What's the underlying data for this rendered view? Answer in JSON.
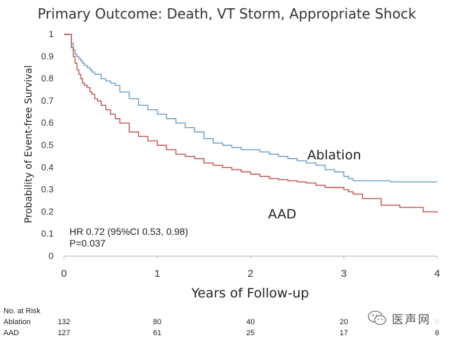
{
  "chart_data": {
    "type": "line",
    "title": "Primary Outcome: Death, VT Storm, Appropriate Shock",
    "xlabel": "Years of Follow-up",
    "ylabel": "Probability of Event-free Survival",
    "xlim": [
      0,
      4
    ],
    "ylim": [
      0,
      1
    ],
    "x_ticks": [
      "0",
      "1",
      "2",
      "3",
      "4"
    ],
    "y_ticks": [
      "0",
      "0.1",
      "0.2",
      "0.3",
      "0.4",
      "0.5",
      "0.6",
      "0.7",
      "0.8",
      "0.9",
      "1"
    ],
    "series": [
      {
        "name": "Ablation",
        "color": "#6a9bc3",
        "x": [
          0,
          0.07,
          0.08,
          0.1,
          0.12,
          0.14,
          0.16,
          0.18,
          0.2,
          0.22,
          0.25,
          0.28,
          0.3,
          0.33,
          0.36,
          0.4,
          0.45,
          0.5,
          0.55,
          0.6,
          0.7,
          0.8,
          0.9,
          1.0,
          1.1,
          1.2,
          1.3,
          1.4,
          1.5,
          1.6,
          1.7,
          1.8,
          1.9,
          2.0,
          2.1,
          2.2,
          2.3,
          2.4,
          2.5,
          2.6,
          2.7,
          2.8,
          2.9,
          3.0,
          3.05,
          3.1,
          3.3,
          3.5,
          4.0
        ],
        "y": [
          1,
          1,
          0.96,
          0.93,
          0.91,
          0.9,
          0.89,
          0.88,
          0.87,
          0.86,
          0.85,
          0.84,
          0.83,
          0.82,
          0.82,
          0.8,
          0.79,
          0.78,
          0.77,
          0.74,
          0.71,
          0.68,
          0.66,
          0.64,
          0.62,
          0.6,
          0.58,
          0.56,
          0.53,
          0.51,
          0.5,
          0.49,
          0.48,
          0.48,
          0.47,
          0.46,
          0.45,
          0.44,
          0.43,
          0.42,
          0.41,
          0.39,
          0.38,
          0.36,
          0.35,
          0.34,
          0.34,
          0.335,
          0.335
        ]
      },
      {
        "name": "AAD",
        "color": "#c0504d",
        "x": [
          0,
          0.07,
          0.08,
          0.1,
          0.12,
          0.14,
          0.16,
          0.18,
          0.2,
          0.22,
          0.25,
          0.28,
          0.3,
          0.33,
          0.36,
          0.4,
          0.45,
          0.5,
          0.55,
          0.6,
          0.7,
          0.8,
          0.9,
          1.0,
          1.1,
          1.2,
          1.3,
          1.4,
          1.5,
          1.6,
          1.7,
          1.8,
          1.9,
          2.0,
          2.1,
          2.2,
          2.3,
          2.4,
          2.5,
          2.6,
          2.7,
          2.8,
          2.9,
          3.0,
          3.05,
          3.1,
          3.2,
          3.4,
          3.6,
          3.8,
          3.85,
          4.0
        ],
        "y": [
          1,
          1,
          0.94,
          0.9,
          0.87,
          0.84,
          0.82,
          0.8,
          0.78,
          0.77,
          0.76,
          0.74,
          0.73,
          0.71,
          0.7,
          0.68,
          0.66,
          0.64,
          0.62,
          0.6,
          0.56,
          0.54,
          0.52,
          0.5,
          0.48,
          0.46,
          0.45,
          0.44,
          0.42,
          0.41,
          0.4,
          0.39,
          0.38,
          0.37,
          0.36,
          0.35,
          0.345,
          0.34,
          0.335,
          0.33,
          0.32,
          0.31,
          0.31,
          0.3,
          0.29,
          0.28,
          0.26,
          0.23,
          0.22,
          0.22,
          0.2,
          0.195
        ]
      }
    ],
    "annotations": [
      "HR 0.72 (95%CI 0.53, 0.98)",
      "P=0.037"
    ],
    "risk_table": {
      "header": "No. at Risk",
      "rows": [
        {
          "label": "Ablation",
          "values": [
            "132",
            "80",
            "40",
            "20",
            "8"
          ]
        },
        {
          "label": "AAD",
          "values": [
            "127",
            "61",
            "25",
            "17",
            "6"
          ]
        }
      ]
    }
  },
  "watermark": {
    "text": "医声网",
    "icon": "wechat-logo-icon"
  }
}
